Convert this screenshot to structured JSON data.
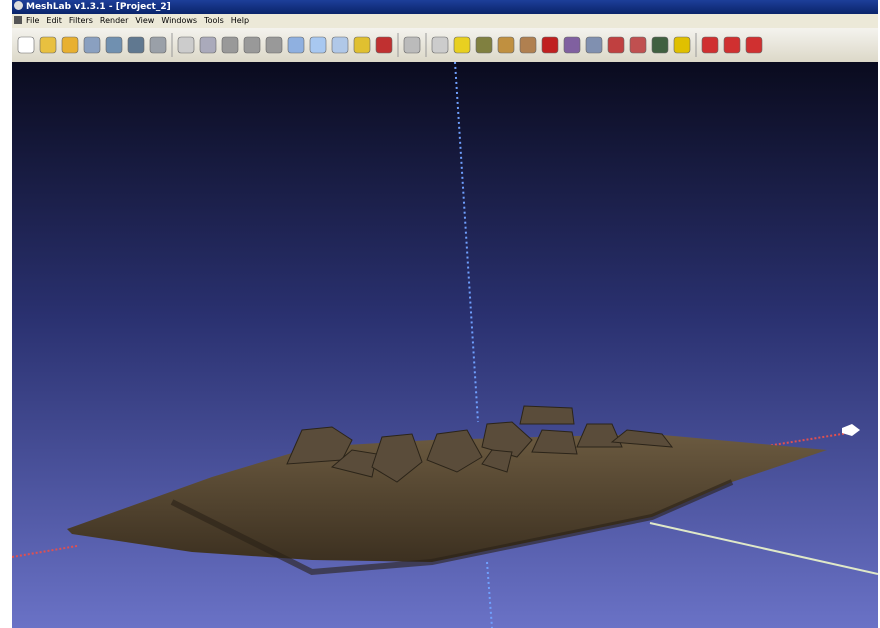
{
  "window": {
    "title": "MeshLab v1.3.1 - [Project_2]"
  },
  "menu": [
    "File",
    "Edit",
    "Filters",
    "Render",
    "View",
    "Windows",
    "Tools",
    "Help"
  ]
}
